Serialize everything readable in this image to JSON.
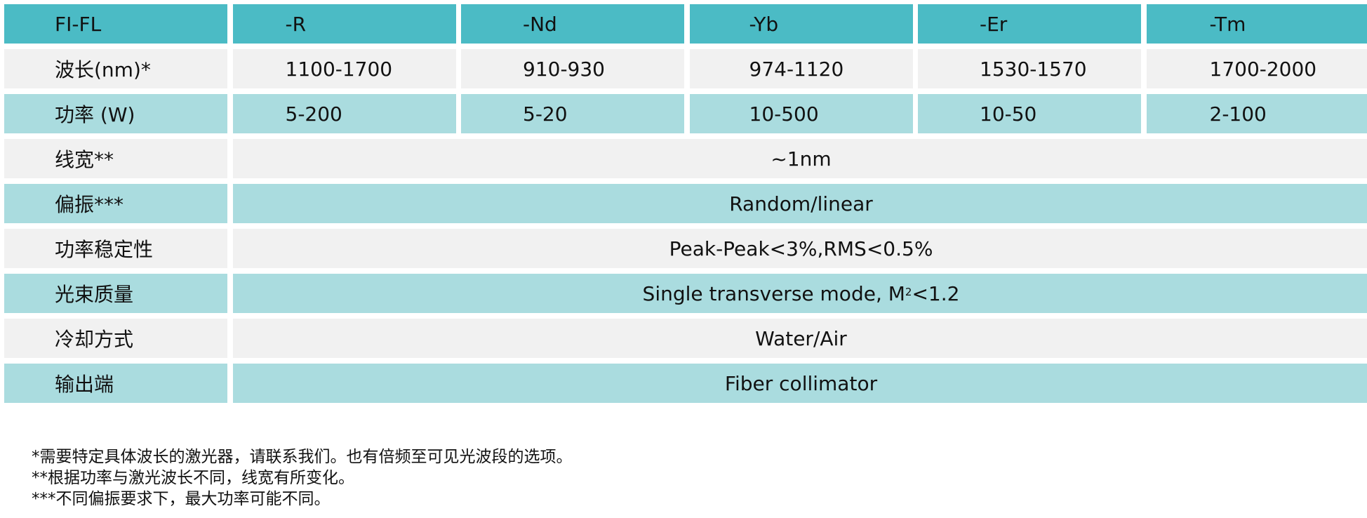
{
  "header": {
    "label": "FI-FL",
    "columns": [
      "-R",
      "-Nd",
      "-Yb",
      "-Er",
      "-Tm"
    ]
  },
  "rows": {
    "wavelength": {
      "label": "波长(nm)*",
      "values": [
        "1100-1700",
        "910-930",
        "974-1120",
        "1530-1570",
        "1700-2000"
      ]
    },
    "power": {
      "label": "功率 (W)",
      "values": [
        "5-200",
        "5-20",
        "10-500",
        "10-50",
        "2-100"
      ]
    },
    "linewidth": {
      "label": "线宽**",
      "value": "~1nm"
    },
    "polarization": {
      "label": "偏振***",
      "value": "Random/linear"
    },
    "power_stability": {
      "label": "功率稳定性",
      "value": "Peak-Peak<3%,RMS<0.5%"
    },
    "beam_quality": {
      "label": "光束质量",
      "value_prefix": "Single transverse mode, M",
      "value_sup": "2",
      "value_suffix": "<1.2"
    },
    "cooling": {
      "label": "冷却方式",
      "value": "Water/Air"
    },
    "output": {
      "label": "输出端",
      "value": "Fiber collimator"
    }
  },
  "footnotes": [
    "*需要特定具体波长的激光器，请联系我们。也有倍频至可见光波段的选项。",
    "**根据功率与激光波长不同，线宽有所变化。",
    "***不同偏振要求下，最大功率可能不同。"
  ],
  "colors": {
    "header_bg": "#4bbbc5",
    "row_gray": "#f1f1f1",
    "row_cyan": "#aadcdf"
  }
}
